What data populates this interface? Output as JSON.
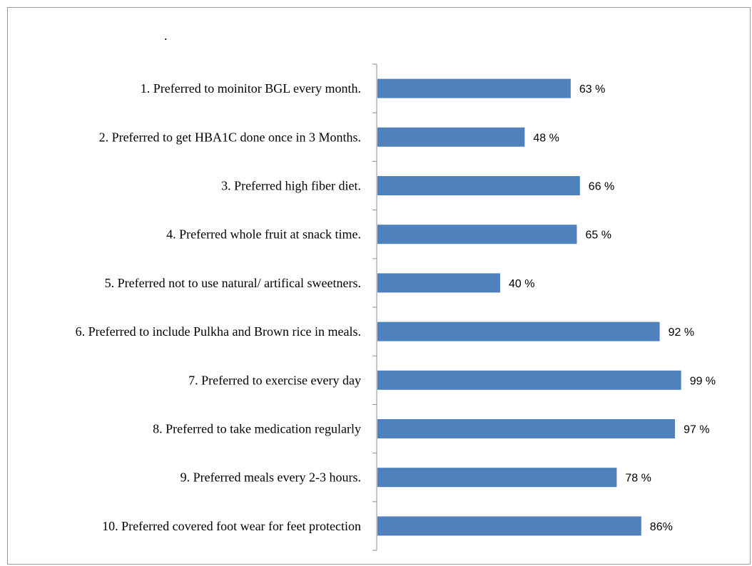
{
  "chart_data": {
    "type": "bar",
    "orientation": "horizontal",
    "title_mark": ".",
    "categories": [
      "1. Preferred to moinitor BGL every month.",
      "2. Preferred to get HBA1C done once in 3 Months.",
      "3. Preferred high fiber diet.",
      "4. Preferred whole fruit at snack time.",
      "5. Preferred not to use natural/ artifical sweetners.",
      "6. Preferred to include Pulkha and Brown rice in meals.",
      "7. Preferred to exercise every day",
      "8. Preferred to take medication regularly",
      "9. Preferred meals every 2-3 hours.",
      "10. Preferred covered foot wear for feet protection"
    ],
    "values": [
      63,
      48,
      66,
      65,
      40,
      92,
      99,
      97,
      78,
      86
    ],
    "value_labels": [
      "63 %",
      "48 %",
      "66 %",
      "65 %",
      "40 %",
      "92 %",
      "99 %",
      "97 %",
      "78 %",
      "86%"
    ],
    "xlim": [
      0,
      100
    ],
    "bar_color": "#4F81BD",
    "grid": false,
    "legend": "none"
  }
}
